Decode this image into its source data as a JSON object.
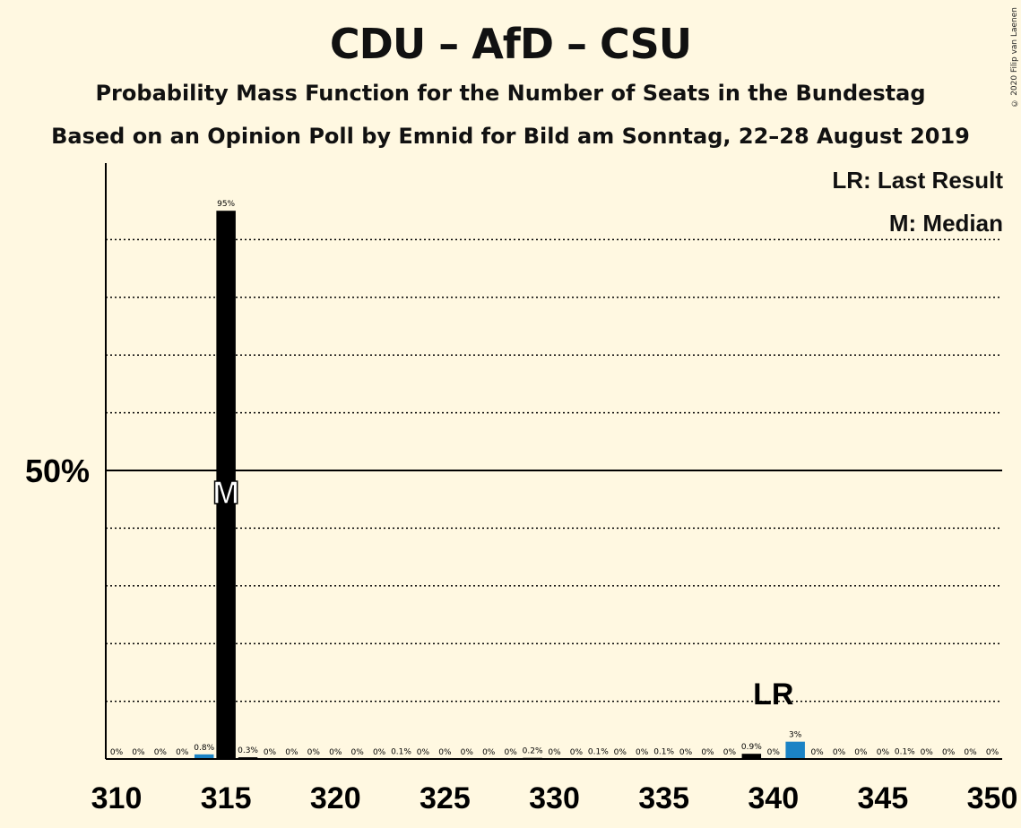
{
  "title": "CDU – AfD – CSU",
  "subtitle1": "Probability Mass Function for the Number of Seats in the Bundestag",
  "subtitle2": "Based on an Opinion Poll by Emnid for Bild am Sonntag, 22–28 August 2019",
  "copyright": "© 2020 Filip van Laenen",
  "legend": {
    "last_result": "LR: Last Result",
    "median": "M: Median"
  },
  "colors": {
    "background": "#FFF8E1",
    "poll": "#000000",
    "last_result": "#1B83C5"
  },
  "chart_data": {
    "type": "bar",
    "xlim": [
      310,
      350
    ],
    "ylim": [
      0,
      100
    ],
    "x_ticks": [
      "310",
      "315",
      "320",
      "325",
      "330",
      "335",
      "340",
      "345",
      "350"
    ],
    "y_tick_label": "50%",
    "median": 315,
    "last_result": 341,
    "median_marker": "M",
    "last_result_marker": "LR",
    "x": [
      310,
      311,
      312,
      313,
      314,
      315,
      316,
      317,
      318,
      319,
      320,
      321,
      322,
      323,
      324,
      325,
      326,
      327,
      328,
      329,
      330,
      331,
      332,
      333,
      334,
      335,
      336,
      337,
      338,
      339,
      340,
      341,
      342,
      343,
      344,
      345,
      346,
      347,
      348,
      349,
      350
    ],
    "values": [
      0,
      0,
      0,
      0,
      0.8,
      95,
      0.3,
      0,
      0,
      0,
      0,
      0,
      0,
      0.1,
      0,
      0,
      0,
      0,
      0,
      0.2,
      0,
      0,
      0.1,
      0,
      0,
      0.1,
      0,
      0,
      0,
      0.9,
      0,
      3,
      0,
      0,
      0,
      0,
      0.1,
      0,
      0,
      0,
      0
    ],
    "labels": [
      "0%",
      "0%",
      "0%",
      "0%",
      "0.8%",
      "95%",
      "0.3%",
      "0%",
      "0%",
      "0%",
      "0%",
      "0%",
      "0%",
      "0.1%",
      "0%",
      "0%",
      "0%",
      "0%",
      "0%",
      "0.2%",
      "0%",
      "0%",
      "0.1%",
      "0%",
      "0%",
      "0.1%",
      "0%",
      "0%",
      "0%",
      "0.9%",
      "0%",
      "3%",
      "0%",
      "0%",
      "0%",
      "0%",
      "0.1%",
      "0%",
      "0%",
      "0%",
      "0%"
    ]
  }
}
